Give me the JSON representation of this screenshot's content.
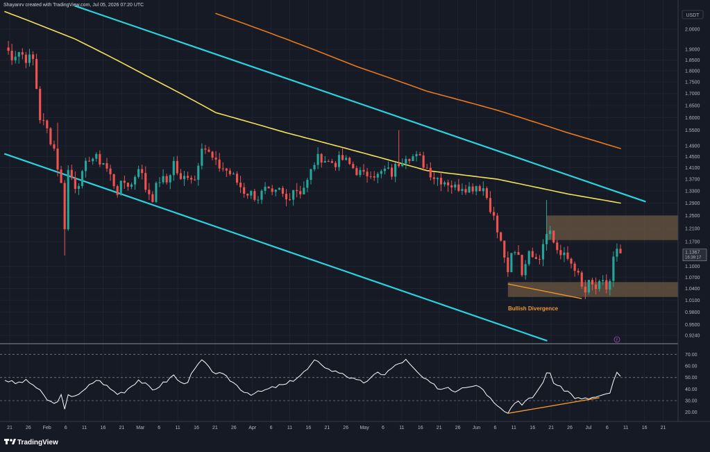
{
  "header": {
    "attribution": "Shayanrv created with TradingView.com, Jul 05, 2026 07:20 UTC",
    "currency": "USDT"
  },
  "footer": {
    "brand": "TradingView"
  },
  "colors": {
    "background": "#161a25",
    "bull": "#26a69a",
    "bear": "#ef5350",
    "channel": "#2bd3e0",
    "ma_fast": "#f5e05a",
    "ma_slow": "#e8791d",
    "zone": "#6b5741",
    "divergence": "#f0962e",
    "rsi": "#ffffff"
  },
  "chart_data": [
    {
      "type": "candlestick",
      "panel": "price",
      "scale": "log",
      "ylim": [
        0.905,
        2.1
      ],
      "y_ticks": [
        "2.0000",
        "1.9000",
        "1.8500",
        "1.8000",
        "1.7500",
        "1.7000",
        "1.6500",
        "1.6000",
        "1.5500",
        "1.4900",
        "1.4500",
        "1.4100",
        "1.3700",
        "1.3300",
        "1.2900",
        "1.2500",
        "1.2100",
        "1.1700",
        "1.1367",
        "1.1000",
        "1.0700",
        "1.0400",
        "1.0100",
        "0.9800",
        "0.9500",
        "0.9240"
      ],
      "x_ticks": [
        "21",
        "26",
        "Feb",
        "6",
        "11",
        "16",
        "21",
        "Mar",
        "6",
        "11",
        "16",
        "21",
        "26",
        "Apr",
        "6",
        "11",
        "16",
        "21",
        "26",
        "May",
        "6",
        "11",
        "16",
        "21",
        "26",
        "Jun",
        "6",
        "11",
        "16",
        "21",
        "26",
        "Jul",
        "6",
        "11",
        "16",
        "21"
      ],
      "last_price": {
        "value": "1.1367",
        "countdown": "16:39:17"
      },
      "candle_anchors": [
        [
          0,
          1.91
        ],
        [
          2,
          1.87
        ],
        [
          4,
          1.89
        ],
        [
          6,
          1.86
        ],
        [
          8,
          1.85
        ],
        [
          10,
          1.6
        ],
        [
          12,
          1.55
        ],
        [
          14,
          1.48
        ],
        [
          16,
          1.35
        ],
        [
          17,
          1.22
        ],
        [
          18,
          1.4
        ],
        [
          20,
          1.35
        ],
        [
          22,
          1.38
        ],
        [
          24,
          1.45
        ],
        [
          26,
          1.44
        ],
        [
          28,
          1.43
        ],
        [
          30,
          1.38
        ],
        [
          32,
          1.33
        ],
        [
          34,
          1.36
        ],
        [
          36,
          1.35
        ],
        [
          38,
          1.42
        ],
        [
          40,
          1.34
        ],
        [
          42,
          1.31
        ],
        [
          44,
          1.37
        ],
        [
          46,
          1.36
        ],
        [
          48,
          1.43
        ],
        [
          50,
          1.36
        ],
        [
          52,
          1.39
        ],
        [
          54,
          1.37
        ],
        [
          56,
          1.5
        ],
        [
          58,
          1.46
        ],
        [
          60,
          1.42
        ],
        [
          62,
          1.41
        ],
        [
          64,
          1.39
        ],
        [
          66,
          1.36
        ],
        [
          68,
          1.33
        ],
        [
          70,
          1.32
        ],
        [
          72,
          1.31
        ],
        [
          74,
          1.33
        ],
        [
          76,
          1.31
        ],
        [
          78,
          1.33
        ],
        [
          80,
          1.3
        ],
        [
          82,
          1.34
        ],
        [
          84,
          1.33
        ],
        [
          86,
          1.36
        ],
        [
          88,
          1.43
        ],
        [
          90,
          1.45
        ],
        [
          92,
          1.43
        ],
        [
          94,
          1.43
        ],
        [
          96,
          1.44
        ],
        [
          98,
          1.42
        ],
        [
          100,
          1.4
        ],
        [
          102,
          1.38
        ],
        [
          104,
          1.4
        ],
        [
          106,
          1.38
        ],
        [
          108,
          1.4
        ],
        [
          110,
          1.39
        ],
        [
          112,
          1.43
        ],
        [
          114,
          1.46
        ],
        [
          116,
          1.45
        ],
        [
          118,
          1.44
        ],
        [
          120,
          1.41
        ],
        [
          122,
          1.38
        ],
        [
          124,
          1.37
        ],
        [
          126,
          1.36
        ],
        [
          128,
          1.34
        ],
        [
          130,
          1.35
        ],
        [
          132,
          1.34
        ],
        [
          134,
          1.35
        ],
        [
          136,
          1.34
        ],
        [
          138,
          1.28
        ],
        [
          140,
          1.2
        ],
        [
          142,
          1.13
        ],
        [
          143,
          1.07
        ],
        [
          144,
          1.13
        ],
        [
          146,
          1.14
        ],
        [
          147,
          1.08
        ],
        [
          148,
          1.12
        ],
        [
          150,
          1.14
        ],
        [
          152,
          1.13
        ],
        [
          154,
          1.21
        ],
        [
          155,
          1.2
        ],
        [
          156,
          1.17
        ],
        [
          158,
          1.13
        ],
        [
          160,
          1.12
        ],
        [
          162,
          1.1
        ],
        [
          164,
          1.04
        ],
        [
          165,
          1.03
        ],
        [
          166,
          1.05
        ],
        [
          168,
          1.04
        ],
        [
          170,
          1.05
        ],
        [
          171,
          1.04
        ],
        [
          172,
          1.06
        ],
        [
          173,
          1.12
        ],
        [
          174,
          1.14
        ],
        [
          175,
          1.1367
        ]
      ],
      "annotations": {
        "divergence_label": "Bullish Divergence",
        "supply_zone": [
          1.175,
          1.25
        ],
        "demand_zone": [
          1.018,
          1.057
        ],
        "divergence_line": [
          [
            143,
            1.052
          ],
          [
            164,
            1.014
          ]
        ],
        "channel_upper": [
          [
            20,
            2.12
          ],
          [
            182,
            1.295
          ]
        ],
        "channel_lower": [
          [
            0,
            1.46
          ],
          [
            154,
            0.912
          ]
        ],
        "ma_fast": [
          [
            0,
            2.09
          ],
          [
            20,
            1.95
          ],
          [
            40,
            1.78
          ],
          [
            60,
            1.62
          ],
          [
            80,
            1.54
          ],
          [
            100,
            1.47
          ],
          [
            120,
            1.4
          ],
          [
            140,
            1.37
          ],
          [
            160,
            1.32
          ],
          [
            175,
            1.29
          ]
        ],
        "ma_slow": [
          [
            60,
            2.08
          ],
          [
            80,
            1.95
          ],
          [
            100,
            1.82
          ],
          [
            120,
            1.71
          ],
          [
            140,
            1.63
          ],
          [
            160,
            1.54
          ],
          [
            175,
            1.48
          ]
        ]
      }
    },
    {
      "type": "line",
      "panel": "rsi",
      "ylim": [
        12,
        78
      ],
      "y_ticks": [
        "70.00",
        "60.00",
        "50.00",
        "40.00",
        "30.00",
        "20.00"
      ],
      "levels": [
        70,
        50,
        30
      ],
      "values": [
        [
          0,
          48
        ],
        [
          3,
          45
        ],
        [
          6,
          47
        ],
        [
          8,
          44
        ],
        [
          10,
          38
        ],
        [
          12,
          31
        ],
        [
          14,
          27
        ],
        [
          16,
          34
        ],
        [
          17,
          22
        ],
        [
          18,
          34
        ],
        [
          20,
          35
        ],
        [
          22,
          37
        ],
        [
          24,
          43
        ],
        [
          26,
          48
        ],
        [
          28,
          45
        ],
        [
          30,
          40
        ],
        [
          32,
          36
        ],
        [
          34,
          38
        ],
        [
          36,
          43
        ],
        [
          38,
          48
        ],
        [
          40,
          44
        ],
        [
          42,
          39
        ],
        [
          44,
          43
        ],
        [
          46,
          47
        ],
        [
          48,
          52
        ],
        [
          50,
          45
        ],
        [
          52,
          47
        ],
        [
          54,
          57
        ],
        [
          56,
          65
        ],
        [
          58,
          58
        ],
        [
          60,
          54
        ],
        [
          62,
          52
        ],
        [
          64,
          48
        ],
        [
          66,
          43
        ],
        [
          68,
          38
        ],
        [
          70,
          36
        ],
        [
          72,
          37
        ],
        [
          74,
          39
        ],
        [
          76,
          41
        ],
        [
          78,
          43
        ],
        [
          80,
          44
        ],
        [
          82,
          48
        ],
        [
          84,
          52
        ],
        [
          86,
          57
        ],
        [
          88,
          64
        ],
        [
          90,
          62
        ],
        [
          92,
          57
        ],
        [
          94,
          55
        ],
        [
          96,
          54
        ],
        [
          98,
          50
        ],
        [
          100,
          47
        ],
        [
          102,
          46
        ],
        [
          104,
          49
        ],
        [
          106,
          54
        ],
        [
          108,
          53
        ],
        [
          110,
          58
        ],
        [
          112,
          62
        ],
        [
          114,
          65
        ],
        [
          116,
          58
        ],
        [
          118,
          52
        ],
        [
          120,
          47
        ],
        [
          122,
          43
        ],
        [
          124,
          40
        ],
        [
          126,
          42
        ],
        [
          128,
          38
        ],
        [
          130,
          42
        ],
        [
          132,
          43
        ],
        [
          134,
          44
        ],
        [
          136,
          40
        ],
        [
          138,
          32
        ],
        [
          140,
          27
        ],
        [
          142,
          22
        ],
        [
          143,
          19
        ],
        [
          144,
          25
        ],
        [
          146,
          31
        ],
        [
          147,
          26
        ],
        [
          148,
          29
        ],
        [
          150,
          33
        ],
        [
          152,
          41
        ],
        [
          154,
          53
        ],
        [
          155,
          54
        ],
        [
          156,
          46
        ],
        [
          158,
          41
        ],
        [
          160,
          38
        ],
        [
          162,
          33
        ],
        [
          164,
          31
        ],
        [
          166,
          32
        ],
        [
          168,
          33
        ],
        [
          170,
          34
        ],
        [
          172,
          37
        ],
        [
          173,
          46
        ],
        [
          174,
          54
        ],
        [
          175,
          51
        ]
      ],
      "divergence_line": [
        [
          143,
          19
        ],
        [
          169,
          32.5
        ]
      ]
    }
  ]
}
